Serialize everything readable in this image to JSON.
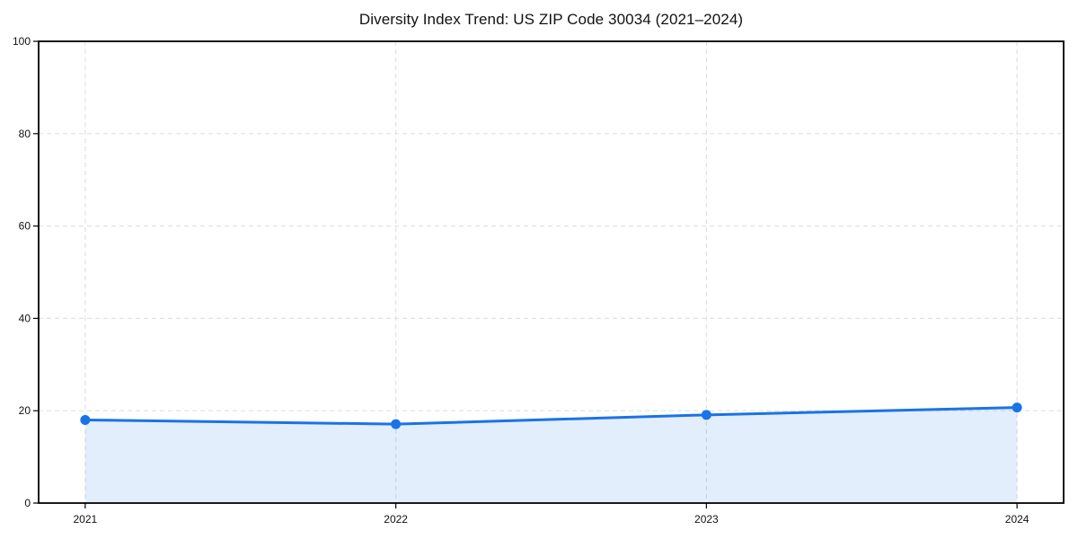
{
  "chart_data": {
    "type": "area",
    "title": "Diversity Index Trend: US ZIP Code 30034 (2021–2024)",
    "x": [
      2021,
      2022,
      2023,
      2024
    ],
    "categories": [
      "2021",
      "2022",
      "2023",
      "2024"
    ],
    "series": [
      {
        "name": "Diversity Index",
        "values": [
          18.0,
          17.1,
          19.1,
          20.7
        ]
      }
    ],
    "xlabel": "",
    "ylabel": "",
    "ylim": [
      0,
      100
    ],
    "yticks": [
      0,
      20,
      40,
      60,
      80,
      100
    ],
    "grid": "dashed, horizontal and vertical",
    "legend_position": "none",
    "colors": {
      "line": "#1a73e8",
      "marker": "#1a73e8",
      "fill": "rgba(26,115,232,0.12)",
      "gridline": "#e1e1e1",
      "spine": "#000000",
      "text": "#111111",
      "background": "#ffffff"
    }
  }
}
